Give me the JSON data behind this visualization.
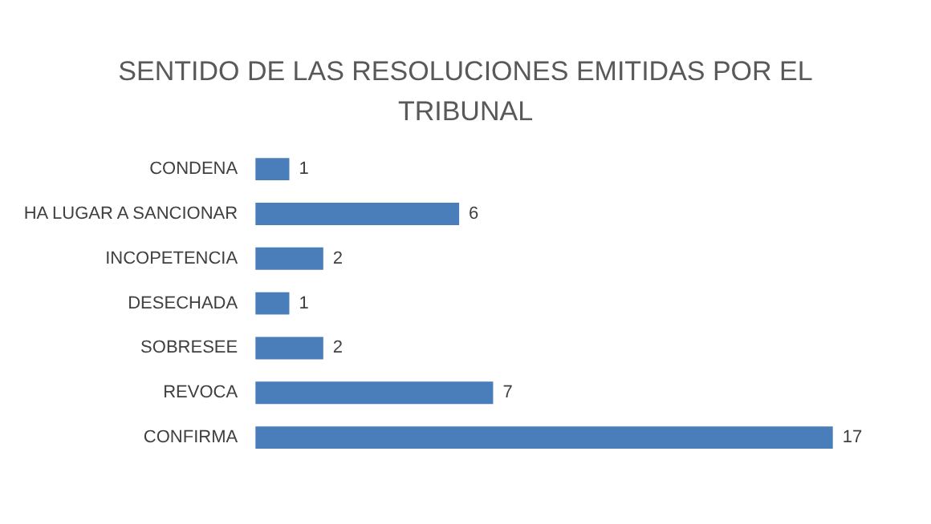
{
  "chart_data": {
    "type": "bar",
    "orientation": "horizontal",
    "title": "SENTIDO DE LAS RESOLUCIONES EMITIDAS POR EL TRIBUNAL",
    "categories": [
      "CONDENA",
      "HA LUGAR A SANCIONAR",
      "INCOPETENCIA",
      "DESECHADA",
      "SOBRESEE",
      "REVOCA",
      "CONFIRMA"
    ],
    "values": [
      1,
      6,
      2,
      1,
      2,
      7,
      17
    ],
    "color": "#4a7ebb",
    "data_labels": true,
    "tick_labels": "y",
    "legend": false
  }
}
